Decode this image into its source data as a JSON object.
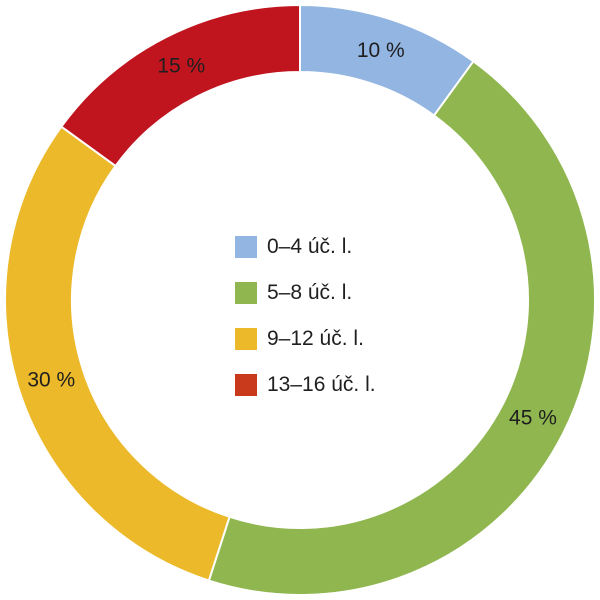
{
  "chart_data": {
    "type": "pie",
    "variant": "donut",
    "categories": [
      "0–4 úč. l.",
      "5–8 úč. l.",
      "9–12 úč. l.",
      "13–16 úč. l."
    ],
    "values": [
      10,
      45,
      30,
      15
    ],
    "value_labels": [
      "10 %",
      "45 %",
      "30 %",
      "15 %"
    ],
    "colors": [
      "#92b5e1",
      "#8fb64f",
      "#ebb92a",
      "#c0151f"
    ],
    "legend_colors": [
      "#92b5e1",
      "#8fb64f",
      "#ebb92a",
      "#c9391c"
    ],
    "title": "",
    "legend_position": "center",
    "start_angle": "top",
    "direction": "clockwise"
  }
}
